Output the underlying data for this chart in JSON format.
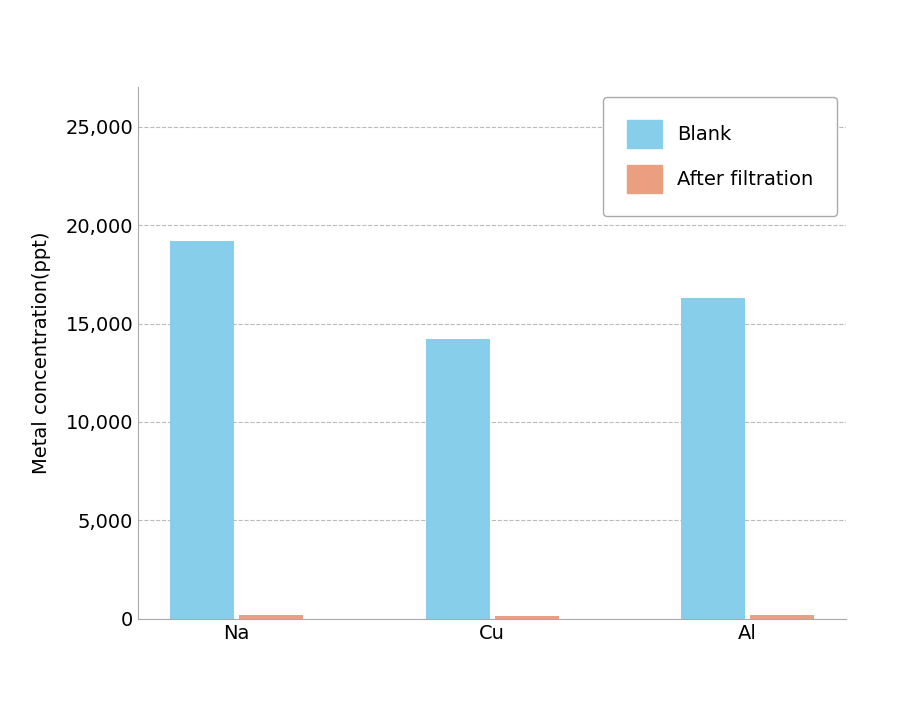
{
  "categories": [
    "Na",
    "Cu",
    "Al"
  ],
  "blank_values": [
    19200,
    14200,
    16300
  ],
  "after_filtration_values": [
    200,
    150,
    200
  ],
  "blank_color": "#87CEEB",
  "after_filtration_color": "#EAA080",
  "ylabel": "Metal concentration(ppt)",
  "ylim": [
    0,
    27000
  ],
  "yticks": [
    0,
    5000,
    10000,
    15000,
    20000,
    25000
  ],
  "legend_blank": "Blank",
  "legend_after": "After filtration",
  "bar_width": 0.25,
  "bar_gap": 0.02,
  "background_color": "#ffffff",
  "plot_bg_color": "#ffffff",
  "grid_color": "#bbbbbb",
  "tick_label_fontsize": 14,
  "axis_label_fontsize": 14,
  "legend_fontsize": 14,
  "spine_color": "#aaaaaa"
}
